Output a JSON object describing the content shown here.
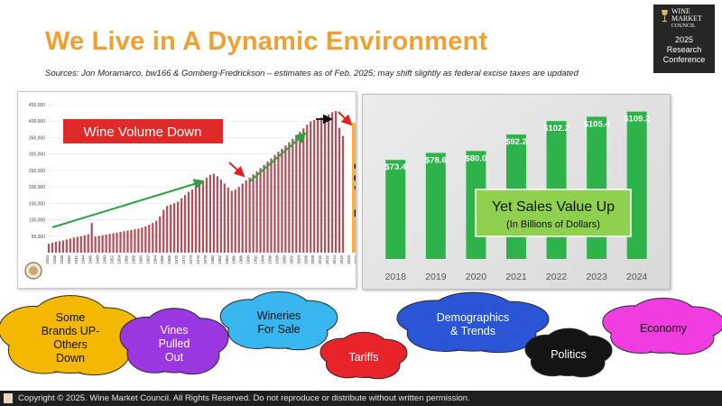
{
  "slide": {
    "title": "We Live in A Dynamic Environment",
    "sources": "Sources: Jon Moramarco, bw166 & Gomberg-Fredrickson – estimates as of  Feb. 2025; may shift slightly as federal excise taxes are updated",
    "footer": "Copyright © 2025.  Wine Market Council. All Rights Reserved. Do not reproduce or distribute without written permission."
  },
  "logo": {
    "brand_lines": [
      "WINE",
      "MARKET",
      "COUNCIL"
    ],
    "event_lines": [
      "2025",
      "Research",
      "Conference"
    ]
  },
  "chart_data": [
    {
      "type": "bar",
      "title": "Wine Volume Down",
      "annotation": "COVID",
      "ylim": [
        0,
        450000
      ],
      "yticks": [
        "50,000",
        "100,000",
        "150,000",
        "200,000",
        "250,000",
        "300,000",
        "350,000",
        "400,000",
        "450,000"
      ],
      "x_tick_labels": [
        "1934",
        "1936",
        "1938",
        "1940",
        "1942",
        "1944",
        "1946",
        "1948",
        "1950",
        "1952",
        "1954",
        "1956",
        "1958",
        "1960",
        "1962",
        "1964",
        "1966",
        "1968",
        "1970",
        "1972",
        "1974",
        "1976",
        "1978",
        "1980",
        "1982",
        "1984",
        "1986",
        "1988",
        "1990",
        "1992",
        "1994",
        "1996",
        "1998",
        "2000",
        "2002",
        "2004",
        "2006",
        "2008",
        "2010",
        "2012",
        "2014",
        "2016",
        "2018",
        "2020",
        "2022",
        "2024 est"
      ],
      "x_start": 1934,
      "values": [
        27000,
        30000,
        33000,
        35000,
        37000,
        40000,
        43000,
        46000,
        48000,
        50000,
        53000,
        56000,
        90000,
        49000,
        51000,
        53000,
        55000,
        57000,
        59000,
        61000,
        63000,
        65000,
        67000,
        69000,
        71000,
        73000,
        76000,
        80000,
        85000,
        90000,
        97000,
        110000,
        130000,
        142000,
        146000,
        150000,
        155000,
        165000,
        175000,
        185000,
        192000,
        200000,
        210000,
        220000,
        228000,
        236000,
        240000,
        232000,
        222000,
        210000,
        198000,
        188000,
        192000,
        200000,
        210000,
        220000,
        228000,
        238000,
        247000,
        257000,
        267000,
        277000,
        287000,
        297000,
        307000,
        316000,
        326000,
        336000,
        346000,
        356000,
        367000,
        378000,
        389000,
        399000,
        403000,
        408000,
        411000,
        415000,
        420000,
        427000,
        431000,
        380000,
        355000
      ],
      "highlight_years": [
        2019,
        2020,
        2021
      ]
    },
    {
      "type": "bar",
      "title": "Yet Sales Value Up",
      "subtitle": "(In Billions of Dollars)",
      "categories": [
        "2018",
        "2019",
        "2020",
        "2021",
        "2022",
        "2023",
        "2024"
      ],
      "values": [
        73.4,
        78.6,
        80.0,
        92.2,
        102.2,
        105.4,
        109.2
      ],
      "data_labels": [
        "$73.4",
        "$78.6",
        "$80.0",
        "$92.2",
        "$102.2",
        "$105.4",
        "$109.2"
      ],
      "ylim": [
        0,
        115
      ],
      "color": "#2db34a"
    }
  ],
  "factors": [
    {
      "label": "Some Brands UP-Others Down",
      "lines": [
        "Some",
        "Brands UP-",
        "Others",
        "Down"
      ],
      "color": "#f5b800"
    },
    {
      "label": "Vines Pulled Out",
      "lines": [
        "Vines",
        "Pulled",
        "Out"
      ],
      "color": "#9b37e0"
    },
    {
      "label": "Wineries For Sale",
      "lines": [
        "Wineries",
        "For Sale"
      ],
      "color": "#38b6f0"
    },
    {
      "label": "Tariffs",
      "lines": [
        "Tariffs"
      ],
      "color": "#e8242a"
    },
    {
      "label": "Demographics & Trends",
      "lines": [
        "Demographics",
        "& Trends"
      ],
      "color": "#2a55d6"
    },
    {
      "label": "Politics",
      "lines": [
        "Politics"
      ],
      "color": "#141414"
    },
    {
      "label": "Economy",
      "lines": [
        "Economy"
      ],
      "color": "#f03ce0"
    }
  ],
  "colors": {
    "title_orange": "#f0a030",
    "volume_bar": "#b0505a",
    "covid_orange": "#f5a623",
    "arrow_green": "#2ea043",
    "arrow_red": "#e02020",
    "banner_red": "#e02a2a",
    "sales_label_box": "#8fd14f"
  }
}
